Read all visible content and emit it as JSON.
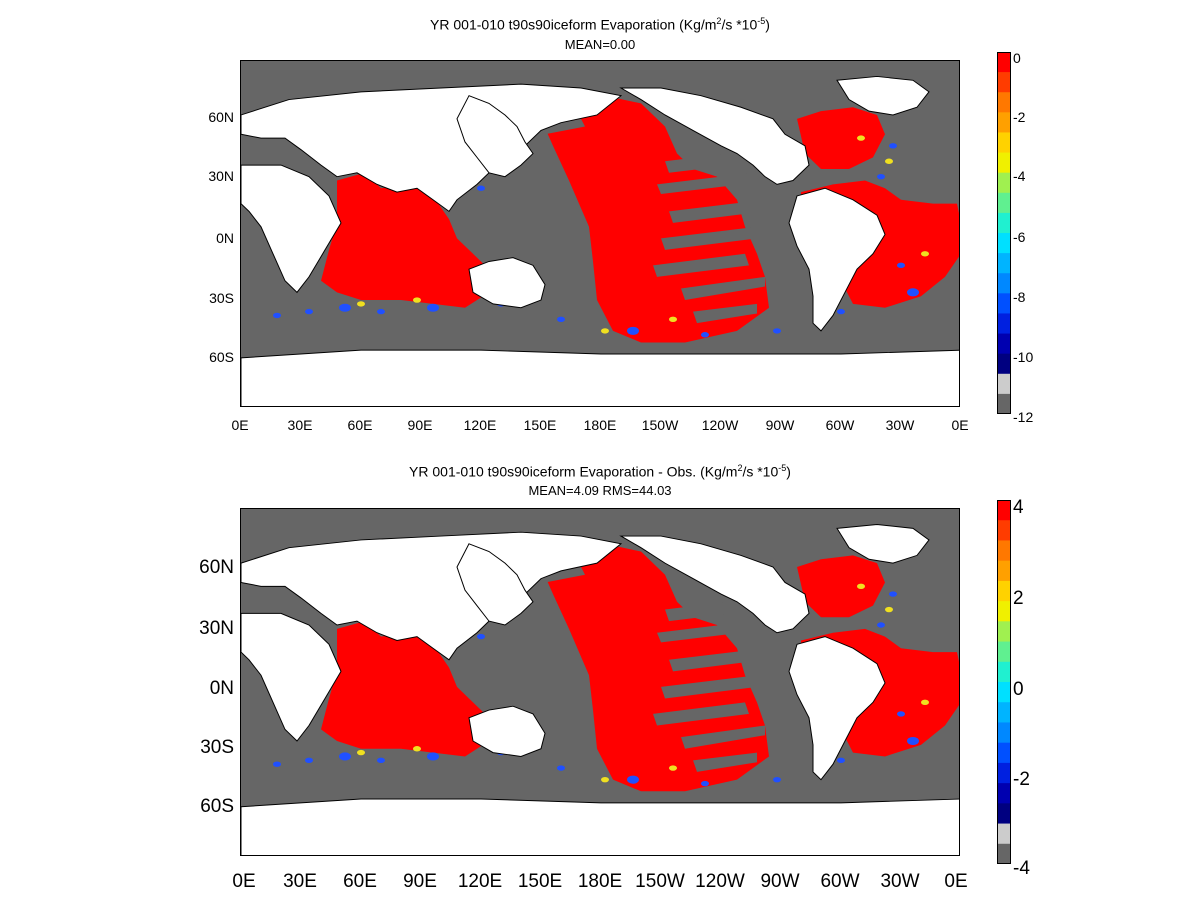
{
  "panels": [
    {
      "title_prefix": "YR 001-010 t90s90iceform  Evaporation (Kg/m",
      "title_sup1": "2",
      "title_mid": "/s *10",
      "title_sup2": "-5",
      "title_suffix": ")",
      "subtitle": "MEAN=0.00",
      "lat_labels": [
        "60N",
        "30N",
        "0N",
        "30S",
        "60S"
      ],
      "lon_labels": [
        "0E",
        "30E",
        "60E",
        "90E",
        "120E",
        "150E",
        "180E",
        "150W",
        "120W",
        "90W",
        "60W",
        "30W",
        "0E"
      ],
      "colorbar": {
        "labels": [
          "0",
          "-2",
          "-4",
          "-6",
          "-8",
          "-10",
          "-12"
        ],
        "range": [
          -12,
          0
        ]
      }
    },
    {
      "title_prefix": "YR 001-010 t90s90iceform Evaporation - Obs. (Kg/m",
      "title_sup1": "2",
      "title_mid": "/s *10",
      "title_sup2": "-5",
      "title_suffix": ")",
      "subtitle": "MEAN=4.09   RMS=44.03",
      "lat_labels": [
        "60N",
        "30N",
        "0N",
        "30S",
        "60S"
      ],
      "lon_labels": [
        "0E",
        "30E",
        "60E",
        "90E",
        "120E",
        "150E",
        "180E",
        "150W",
        "120W",
        "90W",
        "60W",
        "30W",
        "0E"
      ],
      "colorbar": {
        "labels": [
          "4",
          "2",
          "0",
          "-2",
          "-4"
        ],
        "range": [
          -4,
          4
        ]
      }
    }
  ],
  "colors": {
    "ocean_masked": "#666666",
    "land": "#ffffff",
    "field_high": "#ff0000",
    "colorbar_scale": [
      "#ff0000",
      "#ff3c00",
      "#ff7800",
      "#ffa000",
      "#ffd200",
      "#f0f000",
      "#a0f050",
      "#60f090",
      "#20f0d0",
      "#00e0ff",
      "#00b4ff",
      "#0088ff",
      "#0050ff",
      "#0020e0",
      "#0000b0",
      "#000080",
      "#cccccc",
      "#666666"
    ]
  }
}
